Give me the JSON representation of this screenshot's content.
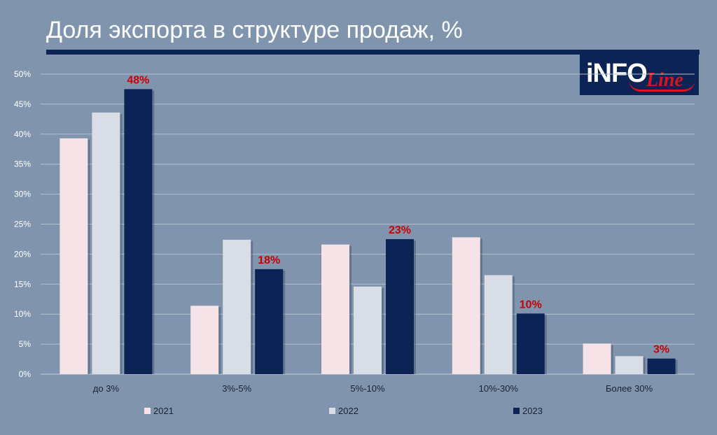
{
  "title": "Доля экспорта в структуре продаж, %",
  "logo": {
    "part1": "iNFO",
    "part2": "Line"
  },
  "chart_data": {
    "type": "bar",
    "title": "Доля экспорта в структуре продаж, %",
    "xlabel": "",
    "ylabel": "",
    "ylim": [
      0,
      50
    ],
    "yticks": [
      0,
      5,
      10,
      15,
      20,
      25,
      30,
      35,
      40,
      45,
      50
    ],
    "ytick_labels": [
      "0%",
      "5%",
      "10%",
      "15%",
      "20%",
      "25%",
      "30%",
      "35%",
      "40%",
      "45%",
      "50%"
    ],
    "categories": [
      "до 3%",
      "3%-5%",
      "5%-10%",
      "10%-30%",
      "Более 30%"
    ],
    "series": [
      {
        "name": "2021",
        "color": "#f5e3e8",
        "values": [
          39.3,
          11.4,
          21.6,
          22.8,
          5.1
        ]
      },
      {
        "name": "2022",
        "color": "#d8dde6",
        "values": [
          43.6,
          22.4,
          14.6,
          16.5,
          3.0
        ]
      },
      {
        "name": "2023",
        "color": "#0c2356",
        "values": [
          47.5,
          17.5,
          22.5,
          10.1,
          2.6
        ]
      }
    ],
    "data_labels": [
      "48%",
      "18%",
      "23%",
      "10%",
      "3%"
    ],
    "data_label_series": "2023",
    "data_label_color": "#cc0000",
    "grid": true,
    "legend_position": "bottom"
  }
}
